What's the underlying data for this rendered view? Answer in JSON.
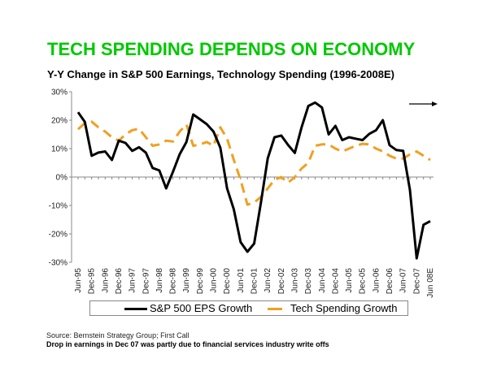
{
  "title": "TECH SPENDING DEPENDS ON ECONOMY",
  "subtitle": "Y-Y Change in S&P 500 Earnings, Technology Spending (1996-2008E)",
  "source": "Source: Bernstein Strategy Group; First Call",
  "note": "Drop in earnings in Dec 07 was partly due to financial services industry write offs",
  "colors": {
    "title": "#00c800",
    "eps": "#000000",
    "tech": "#f0a020"
  },
  "chart_data": {
    "type": "line",
    "title": "Y-Y Change in S&P 500 Earnings, Technology Spending (1996-2008E)",
    "ylim": [
      -30,
      30
    ],
    "yticks": [
      "30%",
      "20%",
      "10%",
      "0%",
      "-10%",
      "-20%",
      "-30%"
    ],
    "ytick_values": [
      30,
      20,
      10,
      0,
      -10,
      -20,
      -30
    ],
    "xtick_labels": [
      "Jun-95",
      "Dec-95",
      "Jun-96",
      "Dec-96",
      "Jun-97",
      "Dec-97",
      "Jun-98",
      "Dec-98",
      "Jun-99",
      "Dec-99",
      "Jun-00",
      "Dec-00",
      "Jun-01",
      "Dec-01",
      "Jun-02",
      "Dec-02",
      "Jun-03",
      "Dec-03",
      "Jun-04",
      "Dec-04",
      "Jun-05",
      "Dec-05",
      "Jun-06",
      "Dec-06",
      "Jun-07",
      "Dec-07",
      "Jun 08E"
    ],
    "x_frequency": "quarterly",
    "grid": false,
    "legend_position": "bottom",
    "annotation": "right-arrow",
    "series": [
      {
        "name": "S&P 500 EPS Growth",
        "style": "solid",
        "color": "#000000",
        "values": [
          22.8,
          19.4,
          7.5,
          8.6,
          9,
          6,
          12.8,
          12,
          9.2,
          10.5,
          8.6,
          3.2,
          2.3,
          -4,
          1.8,
          8,
          12.3,
          22,
          20.3,
          18.6,
          16,
          10.3,
          -4,
          -11.4,
          -22.9,
          -26.3,
          -23.4,
          -9,
          6.6,
          14,
          14.6,
          11.3,
          8.5,
          17.5,
          25,
          26.2,
          24.5,
          15,
          18,
          13,
          14,
          13.5,
          13,
          15.2,
          16.5,
          20,
          11.2,
          9.5,
          9.2,
          -4.5,
          -28.6,
          -16.8,
          -15.5
        ]
      },
      {
        "name": "Tech Spending Growth",
        "style": "dashed",
        "color": "#f0a020",
        "values": [
          16.8,
          19,
          19.5,
          17.5,
          16,
          14,
          12.8,
          15,
          16.5,
          17,
          14,
          11,
          11.5,
          12.8,
          12.5,
          16,
          18.5,
          11,
          11.5,
          12.3,
          11,
          17.5,
          13.5,
          6,
          -1,
          -9.7,
          -9,
          -7,
          -4,
          -1,
          0,
          -2,
          0,
          3,
          5,
          11,
          11.5,
          11.5,
          10,
          9,
          10,
          11,
          11.7,
          11.5,
          10,
          9,
          7.5,
          6.5,
          6.5,
          8,
          9,
          7.5,
          6
        ]
      }
    ]
  }
}
